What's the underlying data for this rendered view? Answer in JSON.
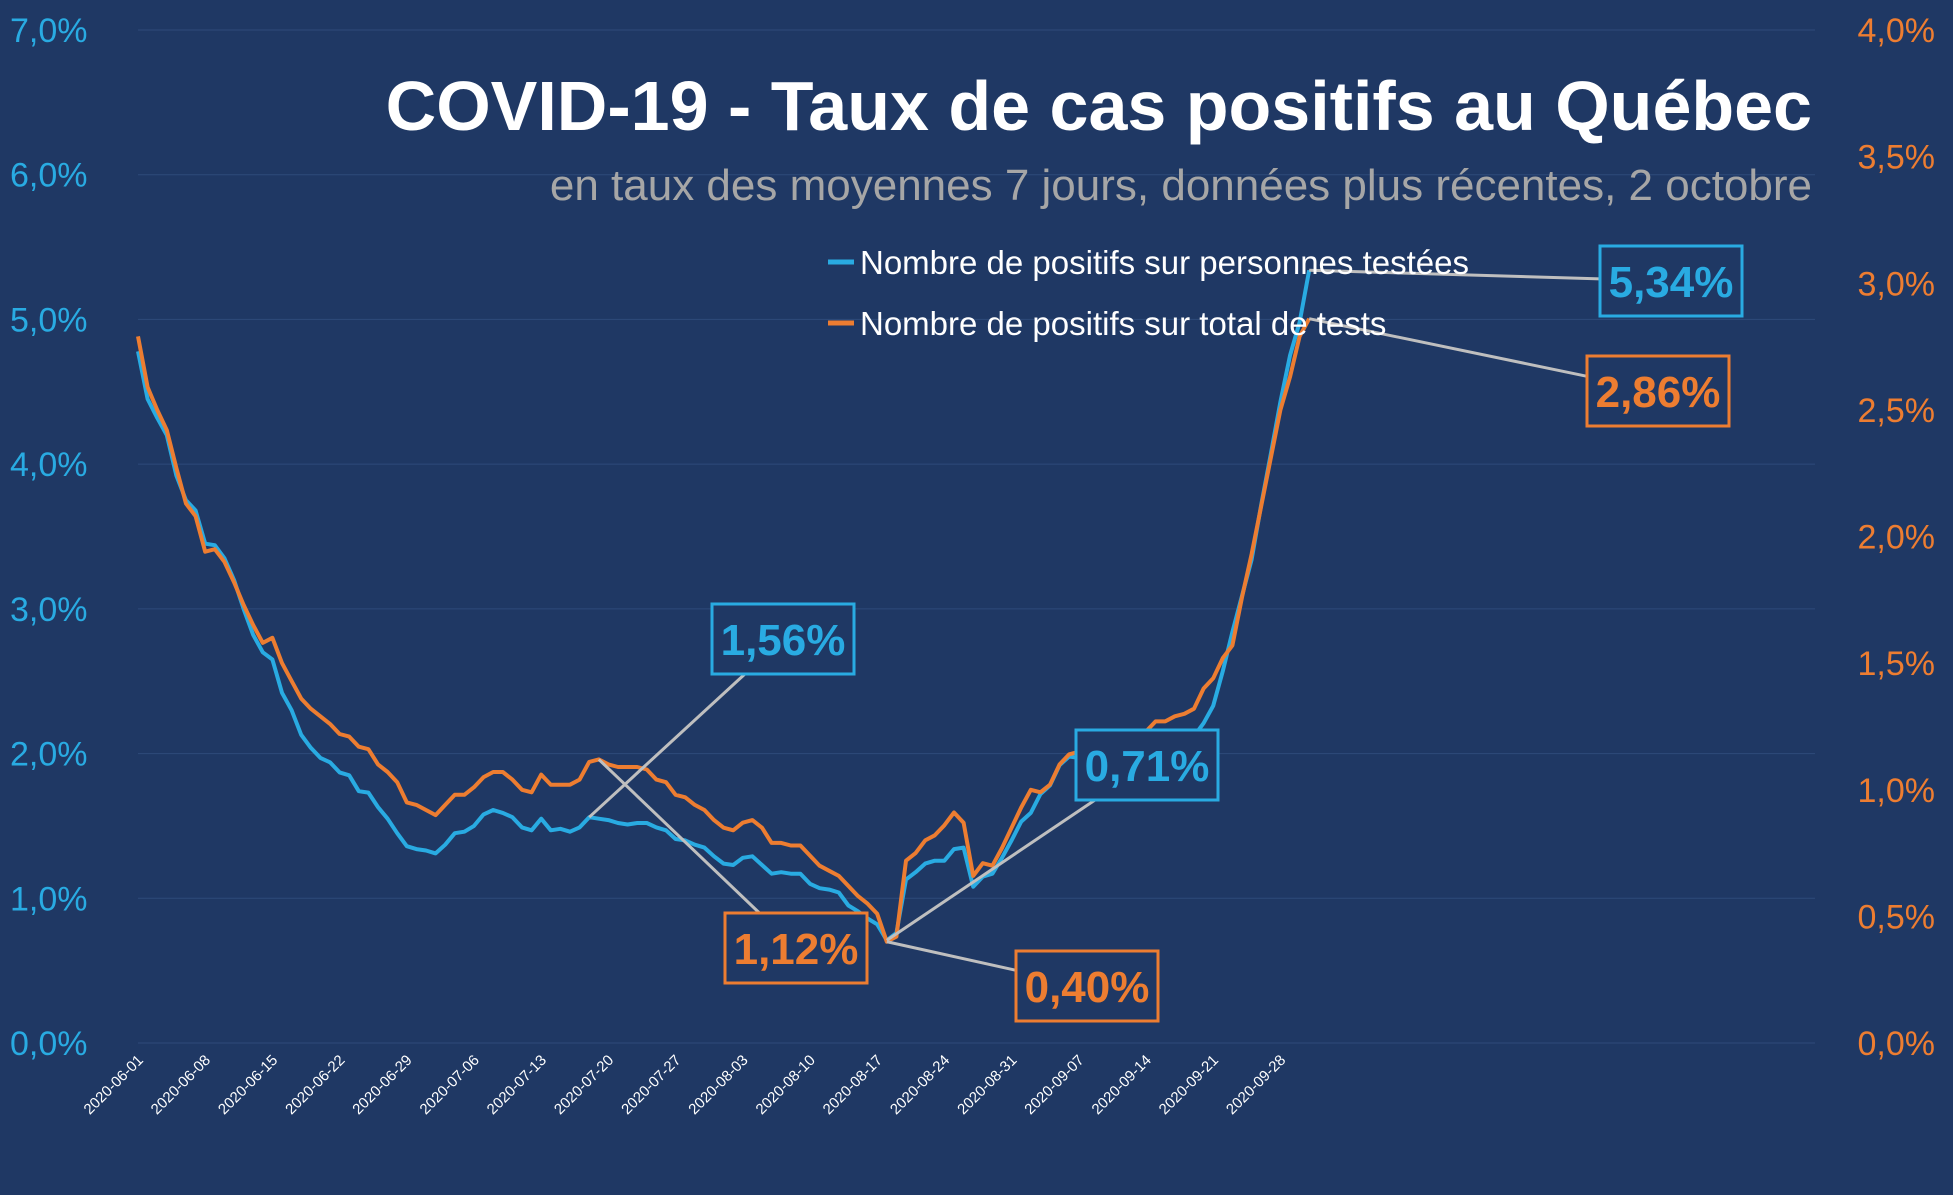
{
  "chart_data": {
    "type": "line",
    "title": "COVID-19 - Taux de cas positifs au Québec",
    "subtitle": "en taux des moyennes 7 jours, données plus récentes, 2 octobre",
    "colors": {
      "background": "#1f3864",
      "series_blue": "#29abe2",
      "series_orange": "#ed7d31",
      "title": "#ffffff",
      "subtitle": "#a6a6a6",
      "leader": "#bfbfbf"
    },
    "grid": true,
    "legend_position": "top-right",
    "y_left": {
      "min": 0,
      "max": 0.07,
      "ticks": [
        "0,0%",
        "1,0%",
        "2,0%",
        "3,0%",
        "4,0%",
        "5,0%",
        "6,0%",
        "7,0%"
      ]
    },
    "y_right": {
      "min": 0,
      "max": 0.04,
      "ticks": [
        "0,0%",
        "0,5%",
        "1,0%",
        "1,5%",
        "2,0%",
        "2,5%",
        "3,0%",
        "3,5%",
        "4,0%"
      ]
    },
    "x_ticks": [
      "2020-06-01",
      "2020-06-08",
      "2020-06-15",
      "2020-06-22",
      "2020-06-29",
      "2020-07-06",
      "2020-07-13",
      "2020-07-20",
      "2020-07-27",
      "2020-08-03",
      "2020-08-10",
      "2020-08-17",
      "2020-08-24",
      "2020-08-31",
      "2020-09-07",
      "2020-09-14",
      "2020-09-21",
      "2020-09-28"
    ],
    "series": [
      {
        "name": "Nombre de positifs sur personnes testées",
        "axis": "left",
        "color": "#29abe2",
        "points": [
          [
            "2020-06-01",
            4.78
          ],
          [
            "2020-06-02",
            4.45
          ],
          [
            "2020-06-03",
            4.32
          ],
          [
            "2020-06-04",
            4.2
          ],
          [
            "2020-06-05",
            3.92
          ],
          [
            "2020-06-06",
            3.75
          ],
          [
            "2020-06-07",
            3.68
          ],
          [
            "2020-06-08",
            3.45
          ],
          [
            "2020-06-09",
            3.44
          ],
          [
            "2020-06-10",
            3.35
          ],
          [
            "2020-06-11",
            3.2
          ],
          [
            "2020-06-12",
            3.0
          ],
          [
            "2020-06-13",
            2.82
          ],
          [
            "2020-06-14",
            2.7
          ],
          [
            "2020-06-15",
            2.65
          ],
          [
            "2020-06-16",
            2.42
          ],
          [
            "2020-06-17",
            2.3
          ],
          [
            "2020-06-18",
            2.13
          ],
          [
            "2020-06-19",
            2.04
          ],
          [
            "2020-06-20",
            1.97
          ],
          [
            "2020-06-21",
            1.94
          ],
          [
            "2020-06-22",
            1.87
          ],
          [
            "2020-06-23",
            1.85
          ],
          [
            "2020-06-24",
            1.74
          ],
          [
            "2020-06-25",
            1.73
          ],
          [
            "2020-06-26",
            1.63
          ],
          [
            "2020-06-27",
            1.55
          ],
          [
            "2020-06-28",
            1.45
          ],
          [
            "2020-06-29",
            1.36
          ],
          [
            "2020-06-30",
            1.34
          ],
          [
            "2020-07-01",
            1.33
          ],
          [
            "2020-07-02",
            1.31
          ],
          [
            "2020-07-03",
            1.37
          ],
          [
            "2020-07-04",
            1.45
          ],
          [
            "2020-07-05",
            1.46
          ],
          [
            "2020-07-06",
            1.5
          ],
          [
            "2020-07-07",
            1.58
          ],
          [
            "2020-07-08",
            1.61
          ],
          [
            "2020-07-09",
            1.59
          ],
          [
            "2020-07-10",
            1.56
          ],
          [
            "2020-07-11",
            1.49
          ],
          [
            "2020-07-12",
            1.47
          ],
          [
            "2020-07-13",
            1.55
          ],
          [
            "2020-07-14",
            1.47
          ],
          [
            "2020-07-15",
            1.48
          ],
          [
            "2020-07-16",
            1.46
          ],
          [
            "2020-07-17",
            1.49
          ],
          [
            "2020-07-18",
            1.56
          ],
          [
            "2020-07-19",
            1.55
          ],
          [
            "2020-07-20",
            1.54
          ],
          [
            "2020-07-21",
            1.52
          ],
          [
            "2020-07-22",
            1.51
          ],
          [
            "2020-07-23",
            1.52
          ],
          [
            "2020-07-24",
            1.52
          ],
          [
            "2020-07-25",
            1.49
          ],
          [
            "2020-07-26",
            1.47
          ],
          [
            "2020-07-27",
            1.41
          ],
          [
            "2020-07-28",
            1.4
          ],
          [
            "2020-07-29",
            1.37
          ],
          [
            "2020-07-30",
            1.35
          ],
          [
            "2020-07-31",
            1.29
          ],
          [
            "2020-08-01",
            1.24
          ],
          [
            "2020-08-02",
            1.23
          ],
          [
            "2020-08-03",
            1.28
          ],
          [
            "2020-08-04",
            1.29
          ],
          [
            "2020-08-05",
            1.23
          ],
          [
            "2020-08-06",
            1.17
          ],
          [
            "2020-08-07",
            1.18
          ],
          [
            "2020-08-08",
            1.17
          ],
          [
            "2020-08-09",
            1.17
          ],
          [
            "2020-08-10",
            1.1
          ],
          [
            "2020-08-11",
            1.07
          ],
          [
            "2020-08-12",
            1.06
          ],
          [
            "2020-08-13",
            1.04
          ],
          [
            "2020-08-14",
            0.95
          ],
          [
            "2020-08-15",
            0.91
          ],
          [
            "2020-08-16",
            0.86
          ],
          [
            "2020-08-17",
            0.82
          ],
          [
            "2020-08-18",
            0.71
          ],
          [
            "2020-08-19",
            0.76
          ],
          [
            "2020-08-20",
            1.13
          ],
          [
            "2020-08-21",
            1.18
          ],
          [
            "2020-08-22",
            1.24
          ],
          [
            "2020-08-23",
            1.26
          ],
          [
            "2020-08-24",
            1.26
          ],
          [
            "2020-08-25",
            1.34
          ],
          [
            "2020-08-26",
            1.35
          ],
          [
            "2020-08-27",
            1.08
          ],
          [
            "2020-08-28",
            1.15
          ],
          [
            "2020-08-29",
            1.17
          ],
          [
            "2020-08-30",
            1.28
          ],
          [
            "2020-08-31",
            1.4
          ],
          [
            "2020-09-01",
            1.53
          ],
          [
            "2020-09-02",
            1.59
          ],
          [
            "2020-09-03",
            1.72
          ],
          [
            "2020-09-04",
            1.78
          ],
          [
            "2020-09-05",
            1.92
          ],
          [
            "2020-09-06",
            1.98
          ],
          [
            "2020-09-07",
            1.97
          ],
          [
            "2020-09-08",
            1.98
          ],
          [
            "2020-09-09",
            1.98
          ],
          [
            "2020-09-10",
            1.82
          ],
          [
            "2020-09-11",
            1.88
          ],
          [
            "2020-09-12",
            1.88
          ],
          [
            "2020-09-13",
            1.92
          ],
          [
            "2020-09-14",
            1.91
          ],
          [
            "2020-09-15",
            1.9
          ],
          [
            "2020-09-16",
            1.89
          ],
          [
            "2020-09-17",
            1.97
          ],
          [
            "2020-09-18",
            2.05
          ],
          [
            "2020-09-19",
            2.12
          ],
          [
            "2020-09-20",
            2.21
          ],
          [
            "2020-09-21",
            2.33
          ],
          [
            "2020-09-22",
            2.57
          ],
          [
            "2020-09-23",
            2.84
          ],
          [
            "2020-09-24",
            3.09
          ],
          [
            "2020-09-25",
            3.34
          ],
          [
            "2020-09-26",
            3.72
          ],
          [
            "2020-09-27",
            4.07
          ],
          [
            "2020-09-28",
            4.43
          ],
          [
            "2020-09-29",
            4.75
          ],
          [
            "2020-09-30",
            4.98
          ],
          [
            "2020-10-01",
            5.34
          ]
        ]
      },
      {
        "name": "Nombre de positifs sur total de tests",
        "axis": "right",
        "color": "#ed7d31",
        "points": [
          [
            "2020-06-01",
            2.79
          ],
          [
            "2020-06-02",
            2.59
          ],
          [
            "2020-06-03",
            2.5
          ],
          [
            "2020-06-04",
            2.42
          ],
          [
            "2020-06-05",
            2.27
          ],
          [
            "2020-06-06",
            2.13
          ],
          [
            "2020-06-07",
            2.08
          ],
          [
            "2020-06-08",
            1.94
          ],
          [
            "2020-06-09",
            1.95
          ],
          [
            "2020-06-10",
            1.9
          ],
          [
            "2020-06-11",
            1.82
          ],
          [
            "2020-06-12",
            1.73
          ],
          [
            "2020-06-13",
            1.65
          ],
          [
            "2020-06-14",
            1.58
          ],
          [
            "2020-06-15",
            1.6
          ],
          [
            "2020-06-16",
            1.5
          ],
          [
            "2020-06-17",
            1.43
          ],
          [
            "2020-06-18",
            1.36
          ],
          [
            "2020-06-19",
            1.32
          ],
          [
            "2020-06-20",
            1.29
          ],
          [
            "2020-06-21",
            1.26
          ],
          [
            "2020-06-22",
            1.22
          ],
          [
            "2020-06-23",
            1.21
          ],
          [
            "2020-06-24",
            1.17
          ],
          [
            "2020-06-25",
            1.16
          ],
          [
            "2020-06-26",
            1.1
          ],
          [
            "2020-06-27",
            1.07
          ],
          [
            "2020-06-28",
            1.03
          ],
          [
            "2020-06-29",
            0.95
          ],
          [
            "2020-06-30",
            0.94
          ],
          [
            "2020-07-01",
            0.92
          ],
          [
            "2020-07-02",
            0.9
          ],
          [
            "2020-07-03",
            0.94
          ],
          [
            "2020-07-04",
            0.98
          ],
          [
            "2020-07-05",
            0.98
          ],
          [
            "2020-07-06",
            1.01
          ],
          [
            "2020-07-07",
            1.05
          ],
          [
            "2020-07-08",
            1.07
          ],
          [
            "2020-07-09",
            1.07
          ],
          [
            "2020-07-10",
            1.04
          ],
          [
            "2020-07-11",
            1.0
          ],
          [
            "2020-07-12",
            0.99
          ],
          [
            "2020-07-13",
            1.06
          ],
          [
            "2020-07-14",
            1.02
          ],
          [
            "2020-07-15",
            1.02
          ],
          [
            "2020-07-16",
            1.02
          ],
          [
            "2020-07-17",
            1.04
          ],
          [
            "2020-07-18",
            1.11
          ],
          [
            "2020-07-19",
            1.12
          ],
          [
            "2020-07-20",
            1.1
          ],
          [
            "2020-07-21",
            1.09
          ],
          [
            "2020-07-22",
            1.09
          ],
          [
            "2020-07-23",
            1.09
          ],
          [
            "2020-07-24",
            1.08
          ],
          [
            "2020-07-25",
            1.04
          ],
          [
            "2020-07-26",
            1.03
          ],
          [
            "2020-07-27",
            0.98
          ],
          [
            "2020-07-28",
            0.97
          ],
          [
            "2020-07-29",
            0.94
          ],
          [
            "2020-07-30",
            0.92
          ],
          [
            "2020-07-31",
            0.88
          ],
          [
            "2020-08-01",
            0.85
          ],
          [
            "2020-08-02",
            0.84
          ],
          [
            "2020-08-03",
            0.87
          ],
          [
            "2020-08-04",
            0.88
          ],
          [
            "2020-08-05",
            0.85
          ],
          [
            "2020-08-06",
            0.79
          ],
          [
            "2020-08-07",
            0.79
          ],
          [
            "2020-08-08",
            0.78
          ],
          [
            "2020-08-09",
            0.78
          ],
          [
            "2020-08-10",
            0.74
          ],
          [
            "2020-08-11",
            0.7
          ],
          [
            "2020-08-12",
            0.68
          ],
          [
            "2020-08-13",
            0.66
          ],
          [
            "2020-08-14",
            0.62
          ],
          [
            "2020-08-15",
            0.58
          ],
          [
            "2020-08-16",
            0.55
          ],
          [
            "2020-08-17",
            0.51
          ],
          [
            "2020-08-18",
            0.4
          ],
          [
            "2020-08-19",
            0.42
          ],
          [
            "2020-08-20",
            0.72
          ],
          [
            "2020-08-21",
            0.75
          ],
          [
            "2020-08-22",
            0.8
          ],
          [
            "2020-08-23",
            0.82
          ],
          [
            "2020-08-24",
            0.86
          ],
          [
            "2020-08-25",
            0.91
          ],
          [
            "2020-08-26",
            0.87
          ],
          [
            "2020-08-27",
            0.66
          ],
          [
            "2020-08-28",
            0.71
          ],
          [
            "2020-08-29",
            0.7
          ],
          [
            "2020-08-30",
            0.77
          ],
          [
            "2020-08-31",
            0.85
          ],
          [
            "2020-09-01",
            0.93
          ],
          [
            "2020-09-02",
            1.0
          ],
          [
            "2020-09-03",
            0.99
          ],
          [
            "2020-09-04",
            1.02
          ],
          [
            "2020-09-05",
            1.1
          ],
          [
            "2020-09-06",
            1.14
          ],
          [
            "2020-09-07",
            1.15
          ],
          [
            "2020-09-08",
            1.14
          ],
          [
            "2020-09-09",
            1.15
          ],
          [
            "2020-09-10",
            1.15
          ],
          [
            "2020-09-11",
            1.21
          ],
          [
            "2020-09-12",
            1.2
          ],
          [
            "2020-09-13",
            1.23
          ],
          [
            "2020-09-14",
            1.23
          ],
          [
            "2020-09-15",
            1.27
          ],
          [
            "2020-09-16",
            1.27
          ],
          [
            "2020-09-17",
            1.29
          ],
          [
            "2020-09-18",
            1.3
          ],
          [
            "2020-09-19",
            1.32
          ],
          [
            "2020-09-20",
            1.4
          ],
          [
            "2020-09-21",
            1.44
          ],
          [
            "2020-09-22",
            1.52
          ],
          [
            "2020-09-23",
            1.57
          ],
          [
            "2020-09-24",
            1.76
          ],
          [
            "2020-09-25",
            1.93
          ],
          [
            "2020-09-26",
            2.12
          ],
          [
            "2020-09-27",
            2.31
          ],
          [
            "2020-09-28",
            2.5
          ],
          [
            "2020-09-29",
            2.63
          ],
          [
            "2020-09-30",
            2.79
          ],
          [
            "2020-10-01",
            2.86
          ]
        ]
      }
    ],
    "annotations": [
      {
        "text": "1,56%",
        "series": 0,
        "date": "2020-07-18",
        "color": "#29abe2"
      },
      {
        "text": "1,12%",
        "series": 1,
        "date": "2020-07-19",
        "color": "#ed7d31"
      },
      {
        "text": "0,71%",
        "series": 0,
        "date": "2020-08-18",
        "color": "#29abe2"
      },
      {
        "text": "0,40%",
        "series": 1,
        "date": "2020-08-18",
        "color": "#ed7d31"
      },
      {
        "text": "5,34%",
        "series": 0,
        "date": "2020-10-01",
        "color": "#29abe2"
      },
      {
        "text": "2,86%",
        "series": 1,
        "date": "2020-10-01",
        "color": "#ed7d31"
      }
    ]
  }
}
